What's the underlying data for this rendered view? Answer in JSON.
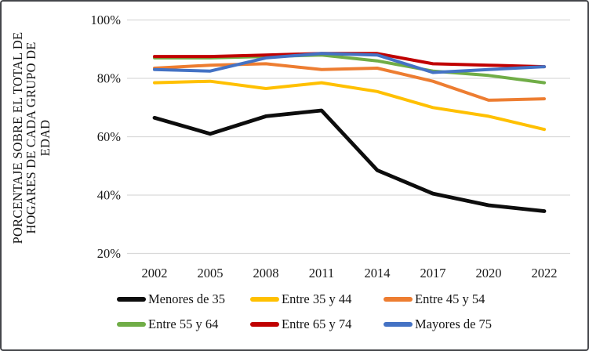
{
  "figure": {
    "y_axis_title_display": "PORCENTAJE SOBRE EL TOTAL DE\nHOGARES DE CADA GRUPO DE\nEDAD"
  },
  "chart_data": {
    "type": "line",
    "title": "",
    "xlabel": "",
    "ylabel": "PORCENTAJE SOBRE EL TOTAL DE HOGARES DE CADA GRUPO DE EDAD",
    "categories": [
      "2002",
      "2005",
      "2008",
      "2011",
      "2014",
      "2017",
      "2020",
      "2022"
    ],
    "y_tick_labels": [
      "100%",
      "80%",
      "60%",
      "40%",
      "20%"
    ],
    "y_tick_values": [
      100,
      80,
      60,
      40,
      20
    ],
    "ylim": [
      20,
      100
    ],
    "grid": "horizontal",
    "gridline_color": "#d9d9d9",
    "legend_position": "bottom",
    "series": [
      {
        "name": "Menores de 35",
        "color": "#0d0d0d",
        "values": [
          66.5,
          61,
          67,
          69,
          48.5,
          40.5,
          36.5,
          34.5
        ]
      },
      {
        "name": "Entre 35 y 44",
        "color": "#FFC000",
        "values": [
          78.5,
          79,
          76.5,
          78.5,
          75.5,
          70,
          67,
          62.5
        ]
      },
      {
        "name": "Entre 45 y 54",
        "color": "#ED7D31",
        "values": [
          83.5,
          84.5,
          85,
          83,
          83.5,
          79,
          72.5,
          73
        ]
      },
      {
        "name": "Entre 55 y 64",
        "color": "#70AD47",
        "values": [
          87,
          87,
          87.5,
          88,
          86,
          82.5,
          81,
          78.5
        ]
      },
      {
        "name": "Entre 65 y 74",
        "color": "#C00000",
        "values": [
          87.5,
          87.5,
          88,
          88.5,
          88.5,
          85,
          84.5,
          84
        ]
      },
      {
        "name": "Mayores de 75",
        "color": "#4472C4",
        "values": [
          83,
          82.5,
          87,
          88.5,
          88,
          82,
          83,
          84
        ]
      }
    ]
  }
}
